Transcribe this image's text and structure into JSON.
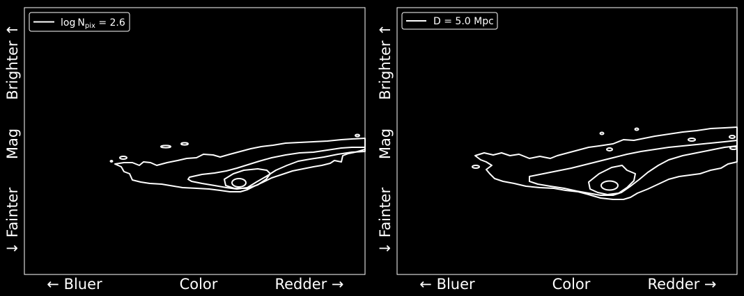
{
  "colors": {
    "background": "#000000",
    "foreground": "#ffffff"
  },
  "chart_data": [
    {
      "type": "contour",
      "legend": {
        "prefix": "log",
        "base": "N",
        "subscript": "pix",
        "suffix": " = 2.6",
        "placement": "upper-left"
      },
      "xlabel": {
        "left": "← Bluer",
        "center": "Color",
        "right": "Redder →"
      },
      "ylabel": {
        "bottom": "↓ Fainter",
        "center": "Mag",
        "top": "Brighter ↑"
      },
      "grid": false
    },
    {
      "type": "contour",
      "legend": {
        "text": "D = 5.0 Mpc",
        "placement": "upper-left"
      },
      "xlabel": {
        "left": "← Bluer",
        "center": "Color",
        "right": "Redder →"
      },
      "ylabel": {
        "bottom": "↓ Fainter",
        "center": "Mag",
        "top": "Brighter ↑"
      },
      "grid": false
    }
  ]
}
